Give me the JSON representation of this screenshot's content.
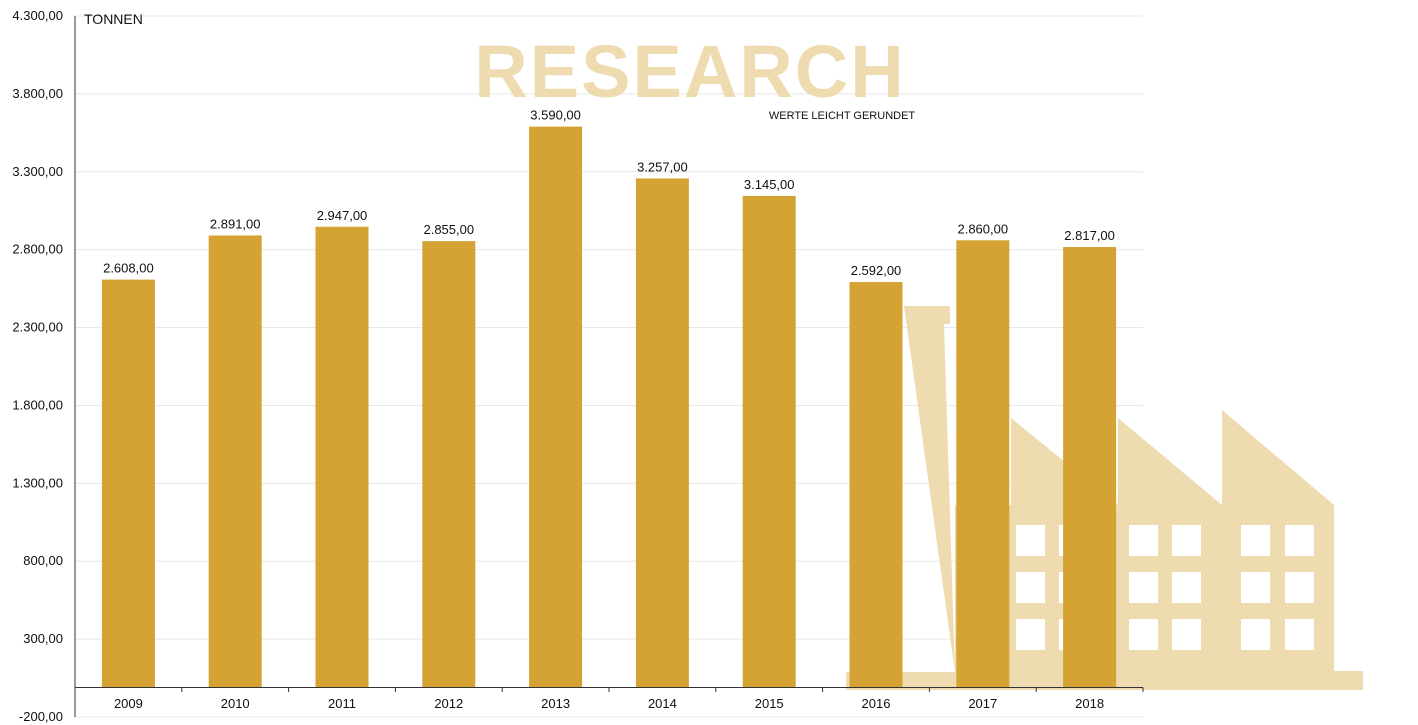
{
  "chart_data": {
    "type": "bar",
    "title": "",
    "unit_label": "TONNEN",
    "note": "WERTE LEICHT GERUNDET",
    "watermark": "RESEARCH",
    "categories": [
      "2009",
      "2010",
      "2011",
      "2012",
      "2013",
      "2014",
      "2015",
      "2016",
      "2017",
      "2018"
    ],
    "values": [
      2608,
      2891,
      2947,
      2855,
      3590,
      3257,
      3145,
      2592,
      2860,
      2817
    ],
    "value_labels": [
      "2.608,00",
      "2.891,00",
      "2.947,00",
      "2.855,00",
      "3.590,00",
      "3.257,00",
      "3.145,00",
      "2.592,00",
      "2.860,00",
      "2.817,00"
    ],
    "y_ticks": [
      4300,
      3800,
      3300,
      2800,
      2300,
      1800,
      1300,
      800,
      300,
      -200
    ],
    "y_tick_labels": [
      "4.300,00",
      "3.800,00",
      "3.300,00",
      "2.800,00",
      "2.300,00",
      "1.800,00",
      "1.300,00",
      "800,00",
      "300,00",
      "-200,00"
    ],
    "ylim": [
      -200,
      4300
    ],
    "grid": true,
    "colors": {
      "bar": "#d4a334",
      "watermark": "#efdbb0",
      "grid": "#e8e8e8",
      "axis": "#333333"
    }
  }
}
